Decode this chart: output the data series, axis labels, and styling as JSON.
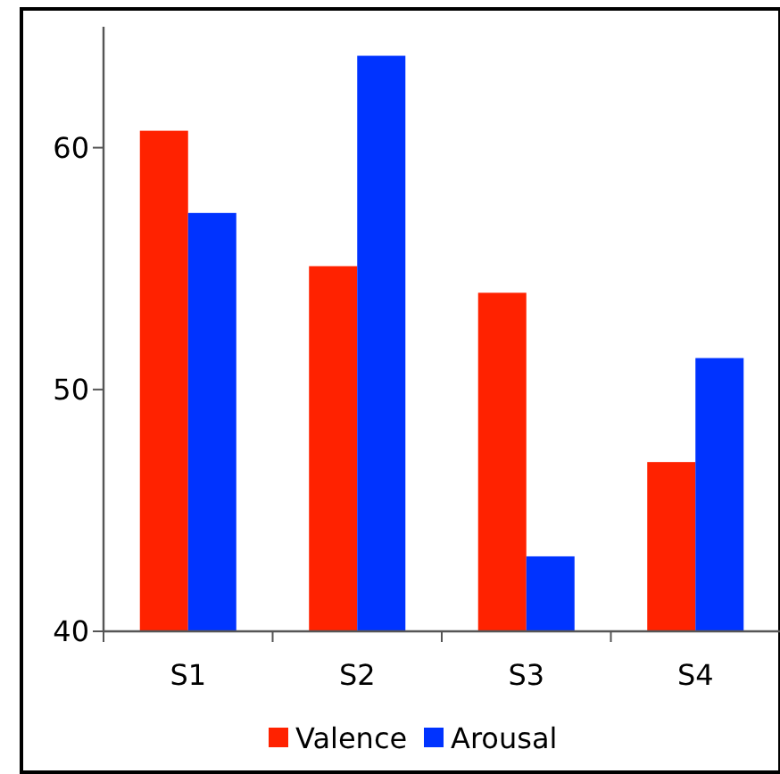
{
  "chart_data": {
    "type": "bar",
    "categories": [
      "S1",
      "S2",
      "S3",
      "S4"
    ],
    "series": [
      {
        "name": "Valence",
        "color": "#ff2200",
        "values": [
          60.7,
          55.1,
          54.0,
          47.0
        ]
      },
      {
        "name": "Arousal",
        "color": "#0033ff",
        "values": [
          57.3,
          63.8,
          43.1,
          51.3
        ]
      }
    ],
    "ylim": [
      40,
      65
    ],
    "yticks": [
      40,
      50,
      60
    ],
    "grid": false,
    "legend": "bottom"
  }
}
